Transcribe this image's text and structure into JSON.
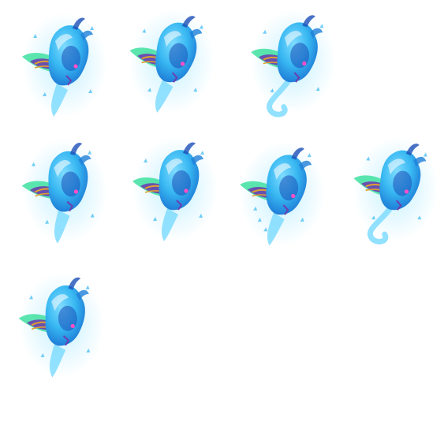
{
  "sprite_sheet": {
    "background": "#ffffff",
    "frames_visible": 8,
    "columns": 4,
    "rows": 3,
    "subject": "blue-spirit-flame-creature",
    "palette": {
      "glow": "#bfefff",
      "body_light": "#7fdcff",
      "body_mid": "#38b8f2",
      "body_deep": "#1f7fd8",
      "body_dark": "#1b4fb8",
      "wing_green": "#3fe0a0",
      "wing_gold": "#e0a030",
      "wing_purple": "#6a3fb0",
      "eye_pink": "#ff4fc8"
    },
    "frames": [
      {
        "pose": "idle-a"
      },
      {
        "pose": "idle-b"
      },
      {
        "pose": "tail-curl"
      },
      {
        "pose": "lean-left"
      },
      {
        "pose": "lean-center"
      },
      {
        "pose": "spark"
      },
      {
        "pose": "tail-curl-b"
      },
      {
        "pose": "idle-c"
      }
    ]
  }
}
